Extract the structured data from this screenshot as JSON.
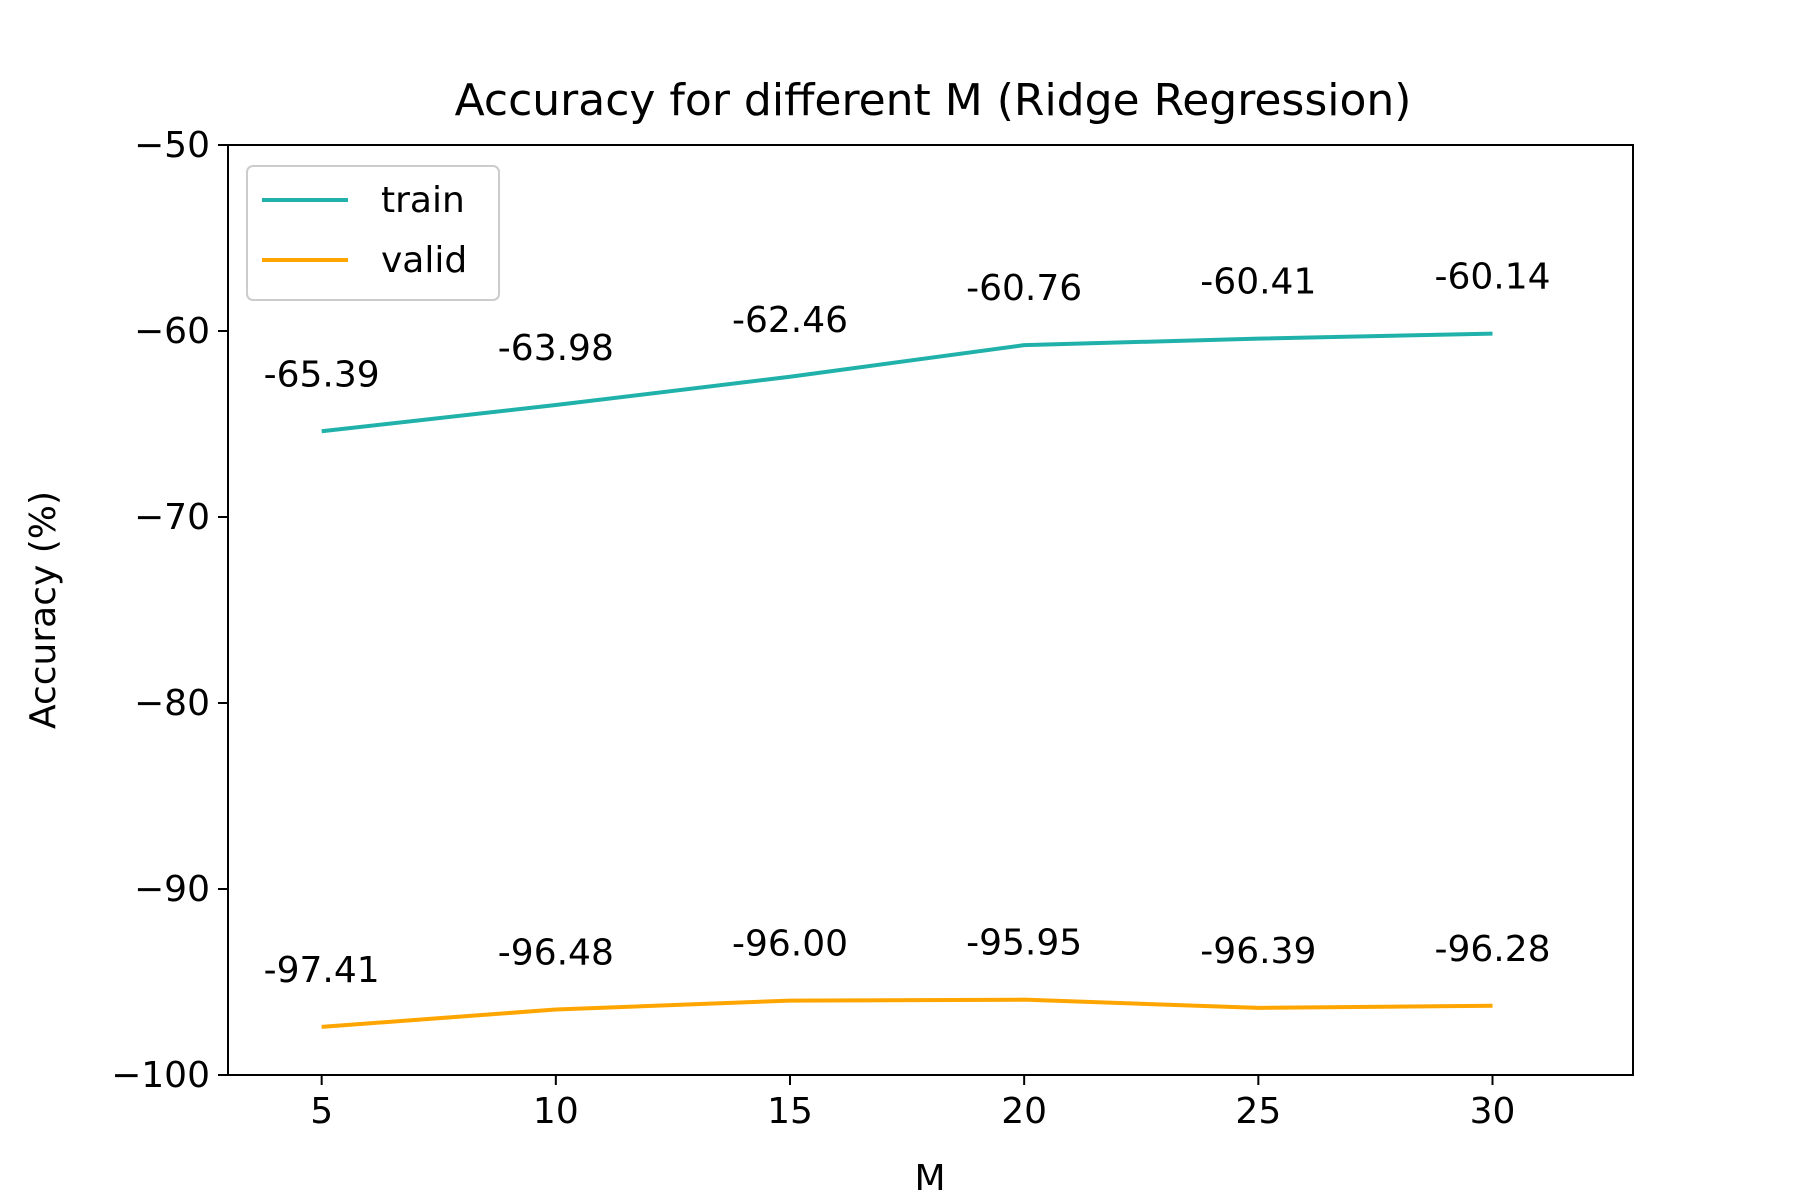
{
  "chart_data": {
    "type": "line",
    "title": "Accuracy for different M (Ridge Regression)",
    "xlabel": "M",
    "ylabel": "Accuracy (%)",
    "x": [
      5,
      10,
      15,
      20,
      25,
      30
    ],
    "xlim": [
      3,
      33
    ],
    "ylim": [
      -100,
      -50
    ],
    "xticks": [
      "5",
      "10",
      "15",
      "20",
      "25",
      "30"
    ],
    "yticks": [
      "−100",
      "−90",
      "−80",
      "−70",
      "−60",
      "−50"
    ],
    "grid": false,
    "legend_position": "upper-left",
    "series": [
      {
        "name": "train",
        "color": "#20b2aa",
        "values": [
          -65.39,
          -63.98,
          -62.46,
          -60.76,
          -60.41,
          -60.14
        ],
        "labels": [
          "-65.39",
          "-63.98",
          "-62.46",
          "-60.76",
          "-60.41",
          "-60.14"
        ]
      },
      {
        "name": "valid",
        "color": "#ffa500",
        "values": [
          -97.41,
          -96.48,
          -96.0,
          -95.95,
          -96.39,
          -96.28
        ],
        "labels": [
          "-97.41",
          "-96.48",
          "-96.00",
          "-95.95",
          "-96.39",
          "-96.28"
        ]
      }
    ]
  }
}
